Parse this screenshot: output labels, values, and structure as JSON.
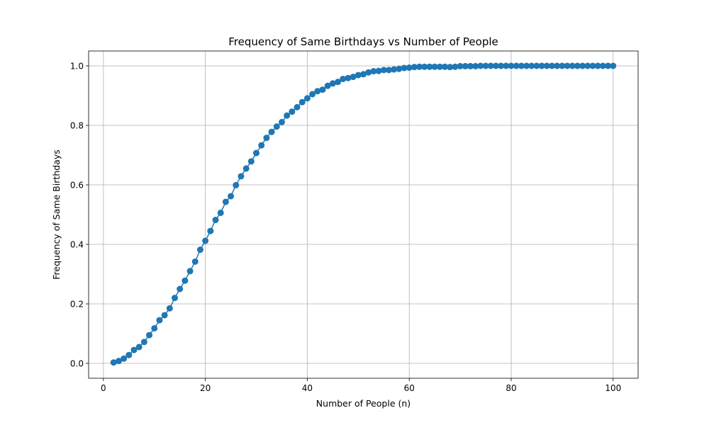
{
  "colors": {
    "series": "#1f77b4",
    "grid": "#b0b0b0",
    "axis": "#000000",
    "background": "#ffffff"
  },
  "chart_data": {
    "type": "line",
    "title": "Frequency of Same Birthdays vs Number of People",
    "xlabel": "Number of People (n)",
    "ylabel": "Frequency of Same Birthdays",
    "xlim": [
      -2.9,
      104.9
    ],
    "ylim": [
      -0.05,
      1.05
    ],
    "xticks": [
      0,
      20,
      40,
      60,
      80,
      100
    ],
    "xtick_labels": [
      "0",
      "20",
      "40",
      "60",
      "80",
      "100"
    ],
    "yticks": [
      0.0,
      0.2,
      0.4,
      0.6,
      0.8,
      1.0
    ],
    "ytick_labels": [
      "0.0",
      "0.2",
      "0.4",
      "0.6",
      "0.8",
      "1.0"
    ],
    "grid": true,
    "marker": "circle",
    "series": [
      {
        "x": [
          2,
          3,
          4,
          5,
          6,
          7,
          8,
          9,
          10,
          11,
          12,
          13,
          14,
          15,
          16,
          17,
          18,
          19,
          20,
          21,
          22,
          23,
          24,
          25,
          26,
          27,
          28,
          29,
          30,
          31,
          32,
          33,
          34,
          35,
          36,
          37,
          38,
          39,
          40,
          41,
          42,
          43,
          44,
          45,
          46,
          47,
          48,
          49,
          50,
          51,
          52,
          53,
          54,
          55,
          56,
          57,
          58,
          59,
          60,
          61,
          62,
          63,
          64,
          65,
          66,
          67,
          68,
          69,
          70,
          71,
          72,
          73,
          74,
          75,
          76,
          77,
          78,
          79,
          80,
          81,
          82,
          83,
          84,
          85,
          86,
          87,
          88,
          89,
          90,
          91,
          92,
          93,
          94,
          95,
          96,
          97,
          98,
          99,
          100
        ],
        "values": [
          0.003,
          0.008,
          0.016,
          0.028,
          0.045,
          0.055,
          0.072,
          0.095,
          0.118,
          0.145,
          0.162,
          0.185,
          0.22,
          0.25,
          0.278,
          0.31,
          0.342,
          0.382,
          0.412,
          0.445,
          0.482,
          0.506,
          0.543,
          0.562,
          0.599,
          0.629,
          0.655,
          0.679,
          0.707,
          0.733,
          0.758,
          0.778,
          0.796,
          0.811,
          0.833,
          0.846,
          0.861,
          0.878,
          0.891,
          0.905,
          0.915,
          0.92,
          0.933,
          0.941,
          0.946,
          0.956,
          0.959,
          0.963,
          0.969,
          0.972,
          0.978,
          0.982,
          0.983,
          0.986,
          0.986,
          0.988,
          0.99,
          0.993,
          0.994,
          0.996,
          0.997,
          0.997,
          0.997,
          0.997,
          0.997,
          0.997,
          0.996,
          0.997,
          0.999,
          0.999,
          0.999,
          0.999,
          1.0,
          1.0,
          1.0,
          1.0,
          1.0,
          1.0,
          1.0,
          1.0,
          1.0,
          1.0,
          1.0,
          1.0,
          1.0,
          1.0,
          1.0,
          1.0,
          1.0,
          1.0,
          1.0,
          1.0,
          1.0,
          1.0,
          1.0,
          1.0,
          1.0,
          1.0,
          1.0
        ]
      }
    ]
  }
}
